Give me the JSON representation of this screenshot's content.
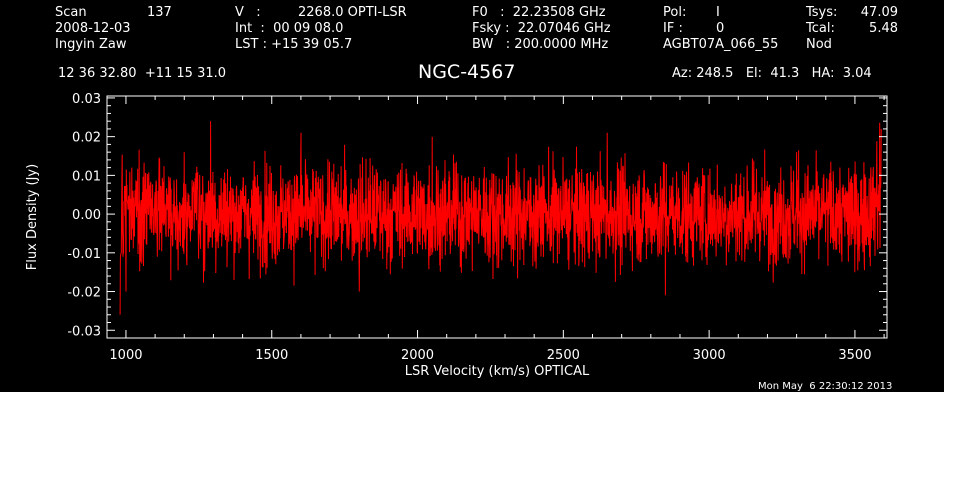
{
  "header": {
    "scan_label": "Scan",
    "scan_number": "137",
    "date": "2008-12-03",
    "observer": "Ingyin Zaw",
    "v_label": "V   :",
    "v_value": "2268.0 OPTI-LSR",
    "int_line": "Int  :  00 09 08.0",
    "lst_line": "LST : +15 39 05.7",
    "f0_line": "F0   :  22.23508 GHz",
    "fsky_line": "Fsky :  22.07046 GHz",
    "bw_line": "BW   : 200.0000 MHz",
    "pol_label": "Pol:",
    "pol_value": "I",
    "if_label": "IF :",
    "if_value": "0",
    "project": "AGBT07A_066_55",
    "tsys_label": "Tsys:",
    "tsys_value": "47.09",
    "tcal_label": "Tcal:",
    "tcal_value": "5.48",
    "procedure": "Nod",
    "coords": "12 36 32.80  +11 15 31.0",
    "source": "NGC-4567",
    "az_el_ha": "Az: 248.5   El:  41.3   HA:  3.04"
  },
  "timestamp": "Mon May  6 22:30:12 2013",
  "colors": {
    "background": "#000000",
    "axes": "#ffffff",
    "trace": "#ff0000",
    "text": "#ffffff"
  },
  "chart_data": {
    "type": "line",
    "xlabel": "LSR Velocity (km/s) OPTICAL",
    "ylabel": "Flux Density (Jy)",
    "xlim": [
      935,
      3610
    ],
    "ylim": [
      -0.032,
      0.0305
    ],
    "x_ticks": [
      1000,
      1500,
      2000,
      2500,
      3000,
      3500
    ],
    "x_tick_labels": [
      "1000",
      "1500",
      "2000",
      "2500",
      "3000",
      "3500"
    ],
    "y_ticks": [
      -0.03,
      -0.02,
      -0.01,
      0.0,
      0.01,
      0.02,
      0.03
    ],
    "y_tick_labels": [
      "-0.03",
      "-0.02",
      "-0.01",
      "0.00",
      "0.01",
      "0.02",
      "0.03"
    ],
    "grid": false,
    "series": [
      {
        "color": "#ff0000",
        "x_start": 980,
        "x_end": 3590,
        "noise_rms_jy": 0.0065,
        "mean_jy": 0.0,
        "points": [
          [
            980,
            -0.026
          ],
          [
            990,
            -0.011
          ],
          [
            1000,
            -0.02
          ],
          [
            1010,
            0.002
          ],
          [
            1020,
            0.012
          ],
          [
            1200,
            0.016
          ],
          [
            1290,
            0.024
          ],
          [
            1600,
            0.021
          ],
          [
            1800,
            -0.02
          ],
          [
            2050,
            0.02
          ],
          [
            2650,
            0.021
          ],
          [
            2850,
            -0.021
          ],
          [
            3300,
            0.016
          ],
          [
            3500,
            -0.015
          ],
          [
            3560,
            0.008
          ],
          [
            3575,
            0.016
          ],
          [
            3585,
            0.02
          ],
          [
            3590,
            0.018
          ]
        ]
      }
    ]
  }
}
